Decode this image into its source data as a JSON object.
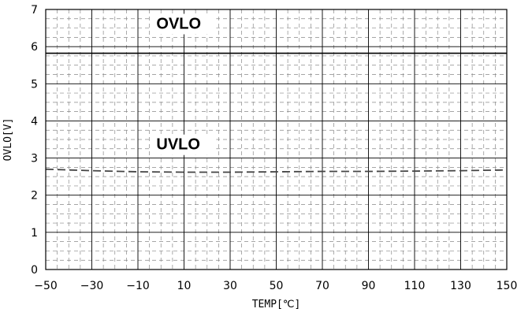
{
  "chart_data": {
    "type": "line",
    "xlabel": "TEMP[℃]",
    "ylabel": "OVLO[V]",
    "xlim": [
      -50,
      150
    ],
    "ylim": [
      0,
      7
    ],
    "x_ticks": [
      -50,
      -30,
      -10,
      10,
      30,
      50,
      70,
      90,
      110,
      130,
      150
    ],
    "y_ticks": [
      0,
      1,
      2,
      3,
      4,
      5,
      6,
      7
    ],
    "grid": true,
    "series": [
      {
        "name": "OVLO",
        "style": "solid",
        "color": "#000000",
        "x": [
          -50,
          150
        ],
        "y": [
          5.82,
          5.82
        ]
      },
      {
        "name": "UVLO",
        "style": "dashed",
        "color": "#444444",
        "x": [
          -50,
          -30,
          -10,
          10,
          30,
          50,
          70,
          90,
          110,
          130,
          150
        ],
        "y": [
          2.7,
          2.66,
          2.63,
          2.62,
          2.62,
          2.63,
          2.64,
          2.64,
          2.65,
          2.66,
          2.68
        ]
      }
    ],
    "annotations": [
      {
        "text": "OVLO",
        "x": -2,
        "y": 6.48
      },
      {
        "text": "UVLO",
        "x": -2,
        "y": 3.23
      }
    ]
  }
}
